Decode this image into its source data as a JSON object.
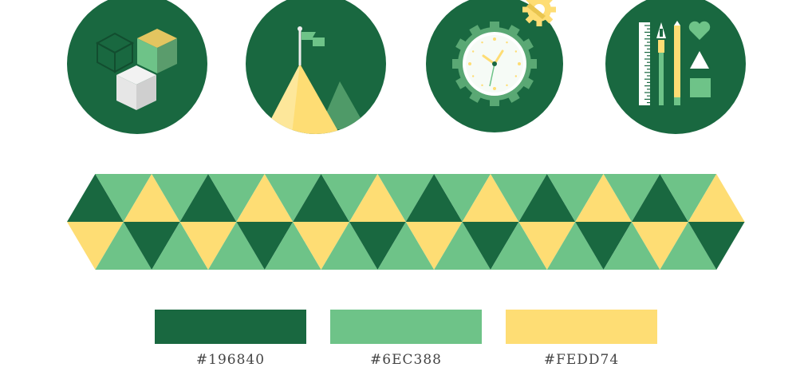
{
  "palette": {
    "dark_green": "#196840",
    "light_green": "#6EC388",
    "yellow": "#FEDD74"
  },
  "icons": [
    "blocks-icon",
    "mountain-flag-icon",
    "gear-clock-icon",
    "design-tools-icon"
  ],
  "swatches": [
    {
      "color": "#196840",
      "label": "#196840"
    },
    {
      "color": "#6EC388",
      "label": "#6EC388"
    },
    {
      "color": "#FEDD74",
      "label": "#FEDD74"
    }
  ]
}
